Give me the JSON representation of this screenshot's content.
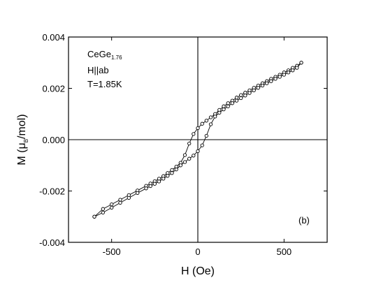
{
  "chart_data": {
    "type": "scatter",
    "xlabel": "H (Oe)",
    "ylabel": {
      "main": "M (μ",
      "subscript": "B",
      "suffix": "/mol)"
    },
    "xlim": [
      -750,
      750
    ],
    "ylim": [
      -0.004,
      0.004
    ],
    "x_ticks": [
      -500,
      0,
      500
    ],
    "x_tick_labels": [
      "-500",
      "0",
      "500"
    ],
    "y_ticks": [
      -0.004,
      -0.002,
      0.0,
      0.002,
      0.004
    ],
    "y_tick_labels": [
      "-0.004",
      "-0.002",
      "0.000",
      "0.002",
      "0.004"
    ],
    "reference_lines": {
      "x": 0,
      "y": 0
    },
    "grid": false,
    "annotations": {
      "compound_main": "CeGe",
      "compound_sub": "1.76",
      "field_direction": "H||ab",
      "temperature": "T=1.85K",
      "panel": "(b)"
    },
    "series": [
      {
        "x": [
          600,
          575,
          550,
          525,
          500,
          475,
          450,
          425,
          400,
          375,
          350,
          325,
          300,
          275,
          250,
          225,
          200,
          175,
          150,
          125,
          100,
          75,
          50,
          25,
          0,
          -25,
          -50,
          -75,
          -100,
          -125,
          -150,
          -175,
          -200,
          -225,
          -250,
          -275,
          -300,
          -350,
          -400,
          -450,
          -500,
          -550,
          -600
        ],
        "values": [
          0.003,
          0.00288,
          0.0028,
          0.0027,
          0.00262,
          0.00253,
          0.00245,
          0.00237,
          0.00228,
          0.0022,
          0.00211,
          0.00202,
          0.00192,
          0.00183,
          0.00174,
          0.00164,
          0.00152,
          0.00142,
          0.0013,
          0.00116,
          0.001,
          0.00087,
          0.00074,
          0.00062,
          0.00045,
          0.00022,
          -0.00015,
          -0.0006,
          -0.0009,
          -0.00105,
          -0.00118,
          -0.0013,
          -0.00142,
          -0.00152,
          -0.00162,
          -0.00171,
          -0.0018,
          -0.00198,
          -0.00216,
          -0.00234,
          -0.00252,
          -0.0027,
          -0.003
        ]
      },
      {
        "x": [
          -600,
          -550,
          -500,
          -450,
          -400,
          -350,
          -300,
          -275,
          -250,
          -225,
          -200,
          -175,
          -150,
          -125,
          -100,
          -75,
          -50,
          -25,
          0,
          25,
          50,
          75,
          100,
          125,
          150,
          175,
          200,
          225,
          250,
          275,
          300,
          325,
          350,
          375,
          400,
          425,
          450,
          475,
          500,
          525,
          550,
          575,
          600
        ],
        "values": [
          -0.003,
          -0.00284,
          -0.00265,
          -0.00246,
          -0.00227,
          -0.00208,
          -0.0019,
          -0.00181,
          -0.00172,
          -0.00163,
          -0.00152,
          -0.00141,
          -0.0013,
          -0.00116,
          -0.001,
          -0.00087,
          -0.00074,
          -0.00062,
          -0.00045,
          -0.00022,
          0.00015,
          0.0006,
          0.0009,
          0.00105,
          0.00118,
          0.0013,
          0.00142,
          0.00152,
          0.00162,
          0.00172,
          0.00182,
          0.00192,
          0.00202,
          0.00211,
          0.0022,
          0.00228,
          0.00237,
          0.00245,
          0.00253,
          0.00262,
          0.0027,
          0.0028,
          0.003
        ]
      }
    ]
  }
}
